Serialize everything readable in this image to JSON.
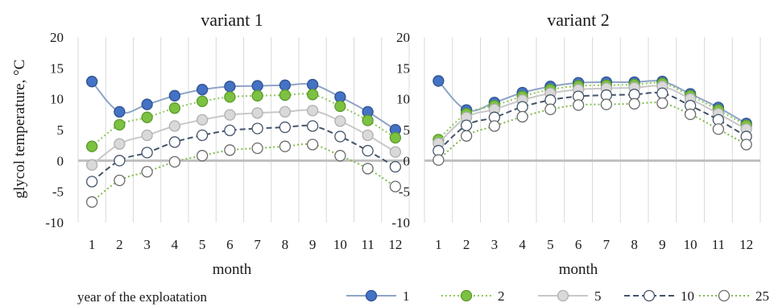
{
  "ylabel": "glycol temperature, °C",
  "legend": {
    "title": "year of the exploatation",
    "placement": "bottom"
  },
  "series_styles": [
    {
      "name": "1",
      "stroke": "#8ea3c8",
      "fill": "#4472c4",
      "edge": "#2f528f",
      "dash": "none"
    },
    {
      "name": "2",
      "stroke": "#8ec95a",
      "fill": "#7dc142",
      "edge": "#5a9a2a",
      "dash": "2,3"
    },
    {
      "name": "5",
      "stroke": "#c8c8c8",
      "fill": "#d9d9d9",
      "edge": "#b0b0b0",
      "dash": "none"
    },
    {
      "name": "10",
      "stroke": "#44546a",
      "fill": "#ffffff",
      "edge": "#44546a",
      "dash": "7,4"
    },
    {
      "name": "25",
      "stroke": "#7dbb4a",
      "fill": "#ffffff",
      "edge": "#6a6a6a",
      "dash": "2,3"
    }
  ],
  "chart_data": [
    {
      "type": "line",
      "title": "variant 1",
      "xlabel": "month",
      "ylabel": "glycol temperature, °C",
      "x": [
        1,
        2,
        3,
        4,
        5,
        6,
        7,
        8,
        9,
        10,
        11,
        12
      ],
      "ylim": [
        -10,
        20
      ],
      "yticks": [
        -10,
        -5,
        0,
        5,
        10,
        15,
        20
      ],
      "grid": "vertical",
      "series": [
        {
          "name": "1",
          "values": [
            12.8,
            7.9,
            9.1,
            10.5,
            11.5,
            12.0,
            12.1,
            12.2,
            12.3,
            10.3,
            7.9,
            5.0
          ]
        },
        {
          "name": "2",
          "values": [
            2.3,
            5.8,
            7.0,
            8.5,
            9.6,
            10.3,
            10.5,
            10.6,
            10.7,
            8.8,
            6.5,
            3.7
          ]
        },
        {
          "name": "5",
          "values": [
            -0.7,
            2.7,
            4.1,
            5.6,
            6.6,
            7.4,
            7.7,
            7.9,
            8.1,
            6.4,
            4.1,
            1.4
          ]
        },
        {
          "name": "10",
          "values": [
            -3.4,
            0.0,
            1.3,
            3.0,
            4.1,
            4.9,
            5.2,
            5.4,
            5.6,
            3.9,
            1.6,
            -1.0
          ]
        },
        {
          "name": "25",
          "values": [
            -6.7,
            -3.2,
            -1.8,
            -0.2,
            0.8,
            1.7,
            2.0,
            2.3,
            2.6,
            0.8,
            -1.3,
            -4.2
          ]
        }
      ]
    },
    {
      "type": "line",
      "title": "variant 2",
      "xlabel": "month",
      "ylabel": "",
      "x": [
        1,
        2,
        3,
        4,
        5,
        6,
        7,
        8,
        9,
        10,
        11,
        12
      ],
      "ylim": [
        -10,
        20
      ],
      "yticks": [
        -10,
        -5,
        0,
        5,
        10,
        15,
        20
      ],
      "grid": "vertical",
      "series": [
        {
          "name": "1",
          "values": [
            12.9,
            8.2,
            9.4,
            11.0,
            12.0,
            12.6,
            12.7,
            12.7,
            12.8,
            10.8,
            8.6,
            6.0
          ]
        },
        {
          "name": "2",
          "values": [
            3.4,
            7.6,
            8.9,
            10.4,
            11.5,
            12.1,
            12.2,
            12.3,
            12.5,
            10.5,
            8.2,
            5.7
          ]
        },
        {
          "name": "5",
          "values": [
            2.8,
            7.0,
            8.3,
            9.8,
            10.9,
            11.5,
            11.7,
            11.8,
            12.0,
            10.0,
            7.6,
            5.1
          ]
        },
        {
          "name": "10",
          "values": [
            1.6,
            5.7,
            7.0,
            8.7,
            9.8,
            10.4,
            10.6,
            10.7,
            10.9,
            8.9,
            6.6,
            3.9
          ]
        },
        {
          "name": "25",
          "values": [
            0.1,
            4.0,
            5.6,
            7.1,
            8.3,
            9.0,
            9.1,
            9.2,
            9.3,
            7.5,
            5.1,
            2.6
          ]
        }
      ]
    }
  ]
}
